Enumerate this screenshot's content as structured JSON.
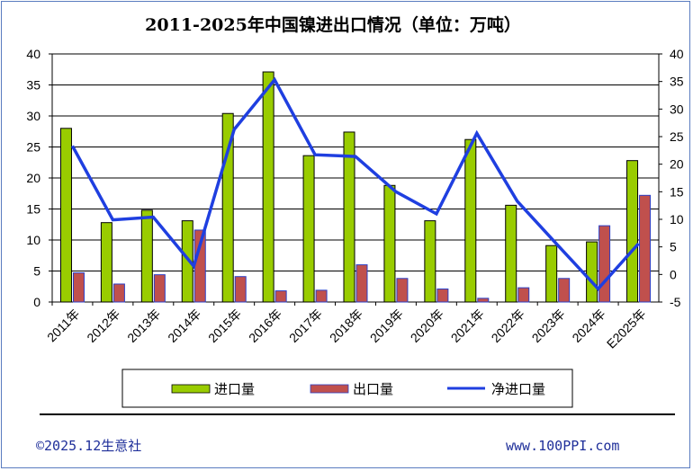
{
  "chart_data": {
    "type": "bar",
    "title": "2011-2025年中国镍进出口情况（单位：万吨）",
    "categories": [
      "2011年",
      "2012年",
      "2013年",
      "2014年",
      "2015年",
      "2016年",
      "2017年",
      "2018年",
      "2019年",
      "2020年",
      "2021年",
      "2022年",
      "2023年",
      "2024年",
      "E2025年"
    ],
    "series": [
      {
        "name": "进口量",
        "kind": "bar",
        "axis": "left",
        "color": "#99cc00",
        "values": [
          28.0,
          12.8,
          14.8,
          13.1,
          30.4,
          37.1,
          23.6,
          27.4,
          18.8,
          13.1,
          26.2,
          15.6,
          9.1,
          9.7,
          22.8
        ]
      },
      {
        "name": "出口量",
        "kind": "bar",
        "axis": "left",
        "color": "#c0504d",
        "values": [
          4.7,
          2.9,
          4.4,
          11.6,
          4.1,
          1.8,
          1.9,
          6.0,
          3.8,
          2.1,
          0.6,
          2.3,
          3.8,
          12.3,
          17.2
        ]
      },
      {
        "name": "净进口量",
        "kind": "line",
        "axis": "right",
        "color": "#1f3fe0",
        "values": [
          23.3,
          9.9,
          10.4,
          1.5,
          26.3,
          35.3,
          21.7,
          21.4,
          15.0,
          11.0,
          25.6,
          13.3,
          5.3,
          -2.6,
          5.6
        ]
      }
    ],
    "left_axis": {
      "ylim": [
        0,
        40
      ],
      "ticks": [
        "0",
        "5",
        "10",
        "15",
        "20",
        "25",
        "30",
        "35",
        "40"
      ]
    },
    "right_axis": {
      "ylim": [
        -5,
        40
      ],
      "ticks": [
        "-5",
        "0",
        "5",
        "10",
        "15",
        "20",
        "25",
        "30",
        "35",
        "40"
      ]
    },
    "grid": true,
    "legend_position": "bottom"
  },
  "footer": {
    "copyright": "©2025.12生意社",
    "website": "www.100PPI.com"
  }
}
